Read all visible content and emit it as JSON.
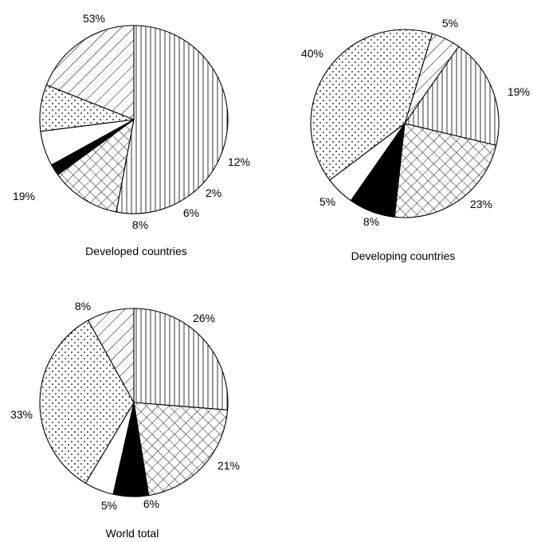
{
  "chart_data": [
    {
      "type": "pie",
      "title": "Developed countries",
      "slices": [
        {
          "pattern": "vertical-lines",
          "value": 53,
          "label": "53%"
        },
        {
          "pattern": "crosshatch",
          "value": 12,
          "label": "12%"
        },
        {
          "pattern": "solid-black",
          "value": 2,
          "label": "2%"
        },
        {
          "pattern": "plain-white",
          "value": 6,
          "label": "6%"
        },
        {
          "pattern": "dots",
          "value": 8,
          "label": "8%"
        },
        {
          "pattern": "diagonal-lines",
          "value": 19,
          "label": "19%"
        }
      ]
    },
    {
      "type": "pie",
      "title": "Developing countries",
      "slices": [
        {
          "pattern": "diagonal-lines",
          "value": 5,
          "label": "5%"
        },
        {
          "pattern": "vertical-lines",
          "value": 19,
          "label": "19%"
        },
        {
          "pattern": "crosshatch",
          "value": 23,
          "label": "23%"
        },
        {
          "pattern": "solid-black",
          "value": 8,
          "label": "8%"
        },
        {
          "pattern": "plain-white",
          "value": 5,
          "label": "5%"
        },
        {
          "pattern": "dots",
          "value": 40,
          "label": "40%"
        }
      ]
    },
    {
      "type": "pie",
      "title": "World total",
      "slices": [
        {
          "pattern": "vertical-lines",
          "value": 26,
          "label": "26%"
        },
        {
          "pattern": "crosshatch",
          "value": 21,
          "label": "21%"
        },
        {
          "pattern": "solid-black",
          "value": 6,
          "label": "6%"
        },
        {
          "pattern": "plain-white",
          "value": 5,
          "label": "5%"
        },
        {
          "pattern": "dots",
          "value": 33,
          "label": "33%"
        },
        {
          "pattern": "diagonal-lines",
          "value": 8,
          "label": "8%"
        }
      ]
    }
  ]
}
